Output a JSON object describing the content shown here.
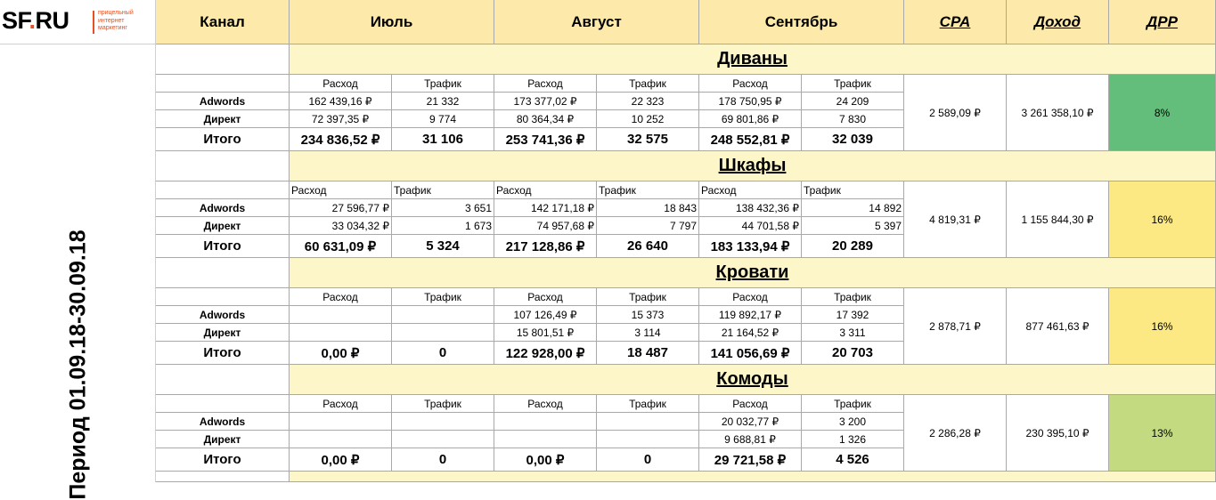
{
  "logo": {
    "text": "SF",
    "dot": ".",
    "suffix": "RU",
    "tagline": [
      "прицельный",
      "интернет",
      "маркетинг"
    ]
  },
  "period_label": "Период 01.09.18-30.09.18",
  "header": {
    "channel": "Канал",
    "months": [
      "Июль",
      "Август",
      "Сентябрь"
    ],
    "cpa": "CPA",
    "income": "Доход",
    "drr": "ДРР"
  },
  "labels": {
    "spend": "Расход",
    "traffic": "Трафик",
    "total": "Итого"
  },
  "sections": [
    {
      "title": "Диваны",
      "center": true,
      "rows": [
        {
          "channel": "Adwords",
          "values": [
            "162 439,16 ₽",
            "21 332",
            "173 377,02 ₽",
            "22 323",
            "178 750,95 ₽",
            "24 209"
          ]
        },
        {
          "channel": "Директ",
          "values": [
            "72 397,35 ₽",
            "9 774",
            "80 364,34 ₽",
            "10 252",
            "69 801,86 ₽",
            "7 830"
          ]
        }
      ],
      "totals": [
        "234 836,52 ₽",
        "31 106",
        "253 741,36 ₽",
        "32 575",
        "248 552,81 ₽",
        "32 039"
      ],
      "cpa": "2 589,09 ₽",
      "income": "3 261 358,10 ₽",
      "drr": "8%",
      "drr_color": "#63be7b"
    },
    {
      "title": "Шкафы",
      "center": false,
      "rows": [
        {
          "channel": "Adwords",
          "values": [
            "27 596,77 ₽",
            "3 651",
            "142 171,18 ₽",
            "18 843",
            "138 432,36 ₽",
            "14 892"
          ]
        },
        {
          "channel": "Директ",
          "values": [
            "33 034,32 ₽",
            "1 673",
            "74 957,68 ₽",
            "7 797",
            "44 701,58 ₽",
            "5 397"
          ]
        }
      ],
      "totals": [
        "60 631,09 ₽",
        "5 324",
        "217 128,86 ₽",
        "26 640",
        "183 133,94 ₽",
        "20 289"
      ],
      "cpa": "4 819,31 ₽",
      "income": "1 155 844,30 ₽",
      "drr": "16%",
      "drr_color": "#fce983"
    },
    {
      "title": "Кровати",
      "center": true,
      "rows": [
        {
          "channel": "Adwords",
          "values": [
            "",
            "",
            "107 126,49 ₽",
            "15 373",
            "119 892,17 ₽",
            "17 392"
          ]
        },
        {
          "channel": "Директ",
          "values": [
            "",
            "",
            "15 801,51 ₽",
            "3 114",
            "21 164,52 ₽",
            "3 311"
          ]
        }
      ],
      "totals": [
        "0,00 ₽",
        "0",
        "122 928,00 ₽",
        "18 487",
        "141 056,69 ₽",
        "20 703"
      ],
      "cpa": "2 878,71 ₽",
      "income": "877 461,63 ₽",
      "drr": "16%",
      "drr_color": "#fce983"
    },
    {
      "title": "Комоды",
      "center": true,
      "rows": [
        {
          "channel": "Adwords",
          "values": [
            "",
            "",
            "",
            "",
            "20 032,77 ₽",
            "3 200"
          ]
        },
        {
          "channel": "Директ",
          "values": [
            "",
            "",
            "",
            "",
            "9 688,81 ₽",
            "1 326"
          ]
        }
      ],
      "totals": [
        "0,00 ₽",
        "0",
        "0,00 ₽",
        "0",
        "29 721,58 ₽",
        "4 526"
      ],
      "cpa": "2 286,28 ₽",
      "income": "230 395,10 ₽",
      "drr": "13%",
      "drr_color": "#c3da80"
    }
  ]
}
